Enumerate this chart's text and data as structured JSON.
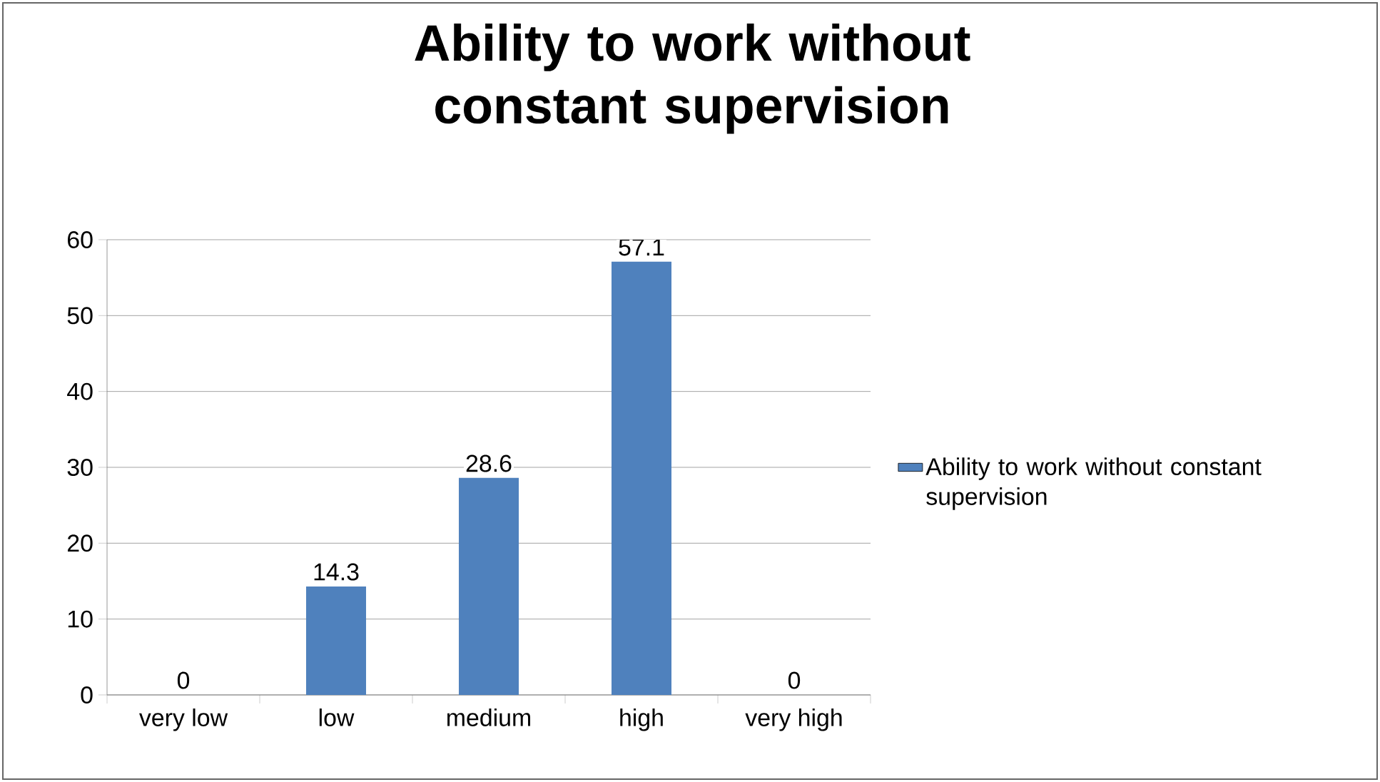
{
  "chart_data": {
    "type": "bar",
    "title": "Ability to work without constant supervision",
    "categories": [
      "very low",
      "low",
      "medium",
      "high",
      "very high"
    ],
    "series": [
      {
        "name": "Ability to work without constant supervision",
        "color": "#4f81bd",
        "values": [
          0,
          14.3,
          28.6,
          57.1,
          0
        ]
      }
    ],
    "ylim": [
      0,
      60
    ],
    "yticks": [
      0,
      10,
      20,
      30,
      40,
      50,
      60
    ],
    "grid": "y",
    "legend": "right",
    "data_labels": true
  }
}
